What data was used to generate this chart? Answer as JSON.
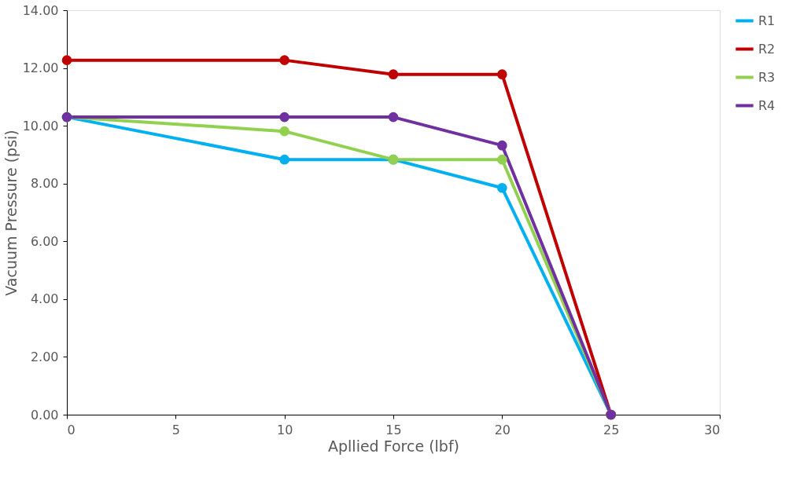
{
  "chart_data": {
    "type": "line",
    "xlabel": "Apllied Force (lbf)",
    "ylabel": "Vacuum Pressure (psi)",
    "x": [
      0,
      10,
      15,
      20,
      25
    ],
    "series": [
      {
        "name": "R1",
        "color": "#00b0f0",
        "values": [
          10.3,
          8.83,
          8.83,
          7.85,
          0
        ]
      },
      {
        "name": "R2",
        "color": "#c00000",
        "values": [
          12.27,
          12.27,
          11.78,
          11.78,
          0
        ]
      },
      {
        "name": "R3",
        "color": "#92d050",
        "values": [
          10.3,
          9.81,
          8.83,
          8.83,
          0
        ]
      },
      {
        "name": "R4",
        "color": "#7030a0",
        "values": [
          10.3,
          10.3,
          10.3,
          9.32,
          0
        ]
      }
    ],
    "xlim": [
      0,
      30
    ],
    "xticks": [
      0,
      5,
      10,
      15,
      20,
      25,
      30
    ],
    "ylim": [
      0,
      14
    ],
    "yticks": [
      {
        "value": 0,
        "label": "0.00"
      },
      {
        "value": 2,
        "label": "2.00"
      },
      {
        "value": 4,
        "label": "4.00"
      },
      {
        "value": 6,
        "label": "6.00"
      },
      {
        "value": 8,
        "label": "8.00"
      },
      {
        "value": 10,
        "label": "10.00"
      },
      {
        "value": 12,
        "label": "12.00"
      },
      {
        "value": 14,
        "label": "14.00"
      }
    ],
    "grid": false,
    "legend": "right",
    "marker": "circle",
    "line_style": "solid"
  }
}
